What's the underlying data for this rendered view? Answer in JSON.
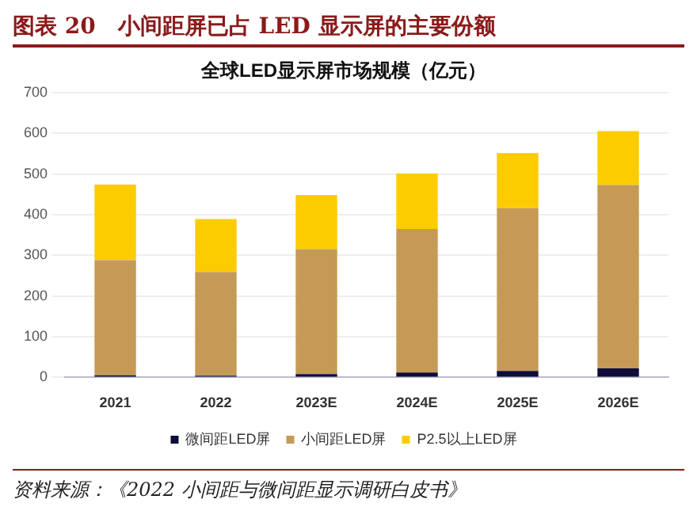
{
  "chart_data": {
    "type": "bar",
    "title": "图表 20　小间距屏已占 LED 显示屏的主要份额",
    "subtitle": "全球LED显示屏市场规模（亿元）",
    "categories": [
      "2021",
      "2022",
      "2023E",
      "2024E",
      "2025E",
      "2026E"
    ],
    "series": [
      {
        "name": "微间距LED屏",
        "color": "#0d0d3a",
        "values": [
          5,
          4,
          8,
          12,
          16,
          22
        ]
      },
      {
        "name": "小间距LED屏",
        "color": "#c49a56",
        "values": [
          283,
          255,
          307,
          353,
          400,
          451
        ]
      },
      {
        "name": "P2.5以上LED屏",
        "color": "#fccc00",
        "values": [
          186,
          130,
          133,
          136,
          135,
          132
        ]
      }
    ],
    "stacked": true,
    "ylim": [
      0,
      700
    ],
    "yticks": [
      0,
      100,
      200,
      300,
      400,
      500,
      600,
      700
    ],
    "grid": "y",
    "legend": "bottom",
    "annotations": [
      "资料来源：《2022 小间距与微间距显示调研白皮书》"
    ]
  }
}
